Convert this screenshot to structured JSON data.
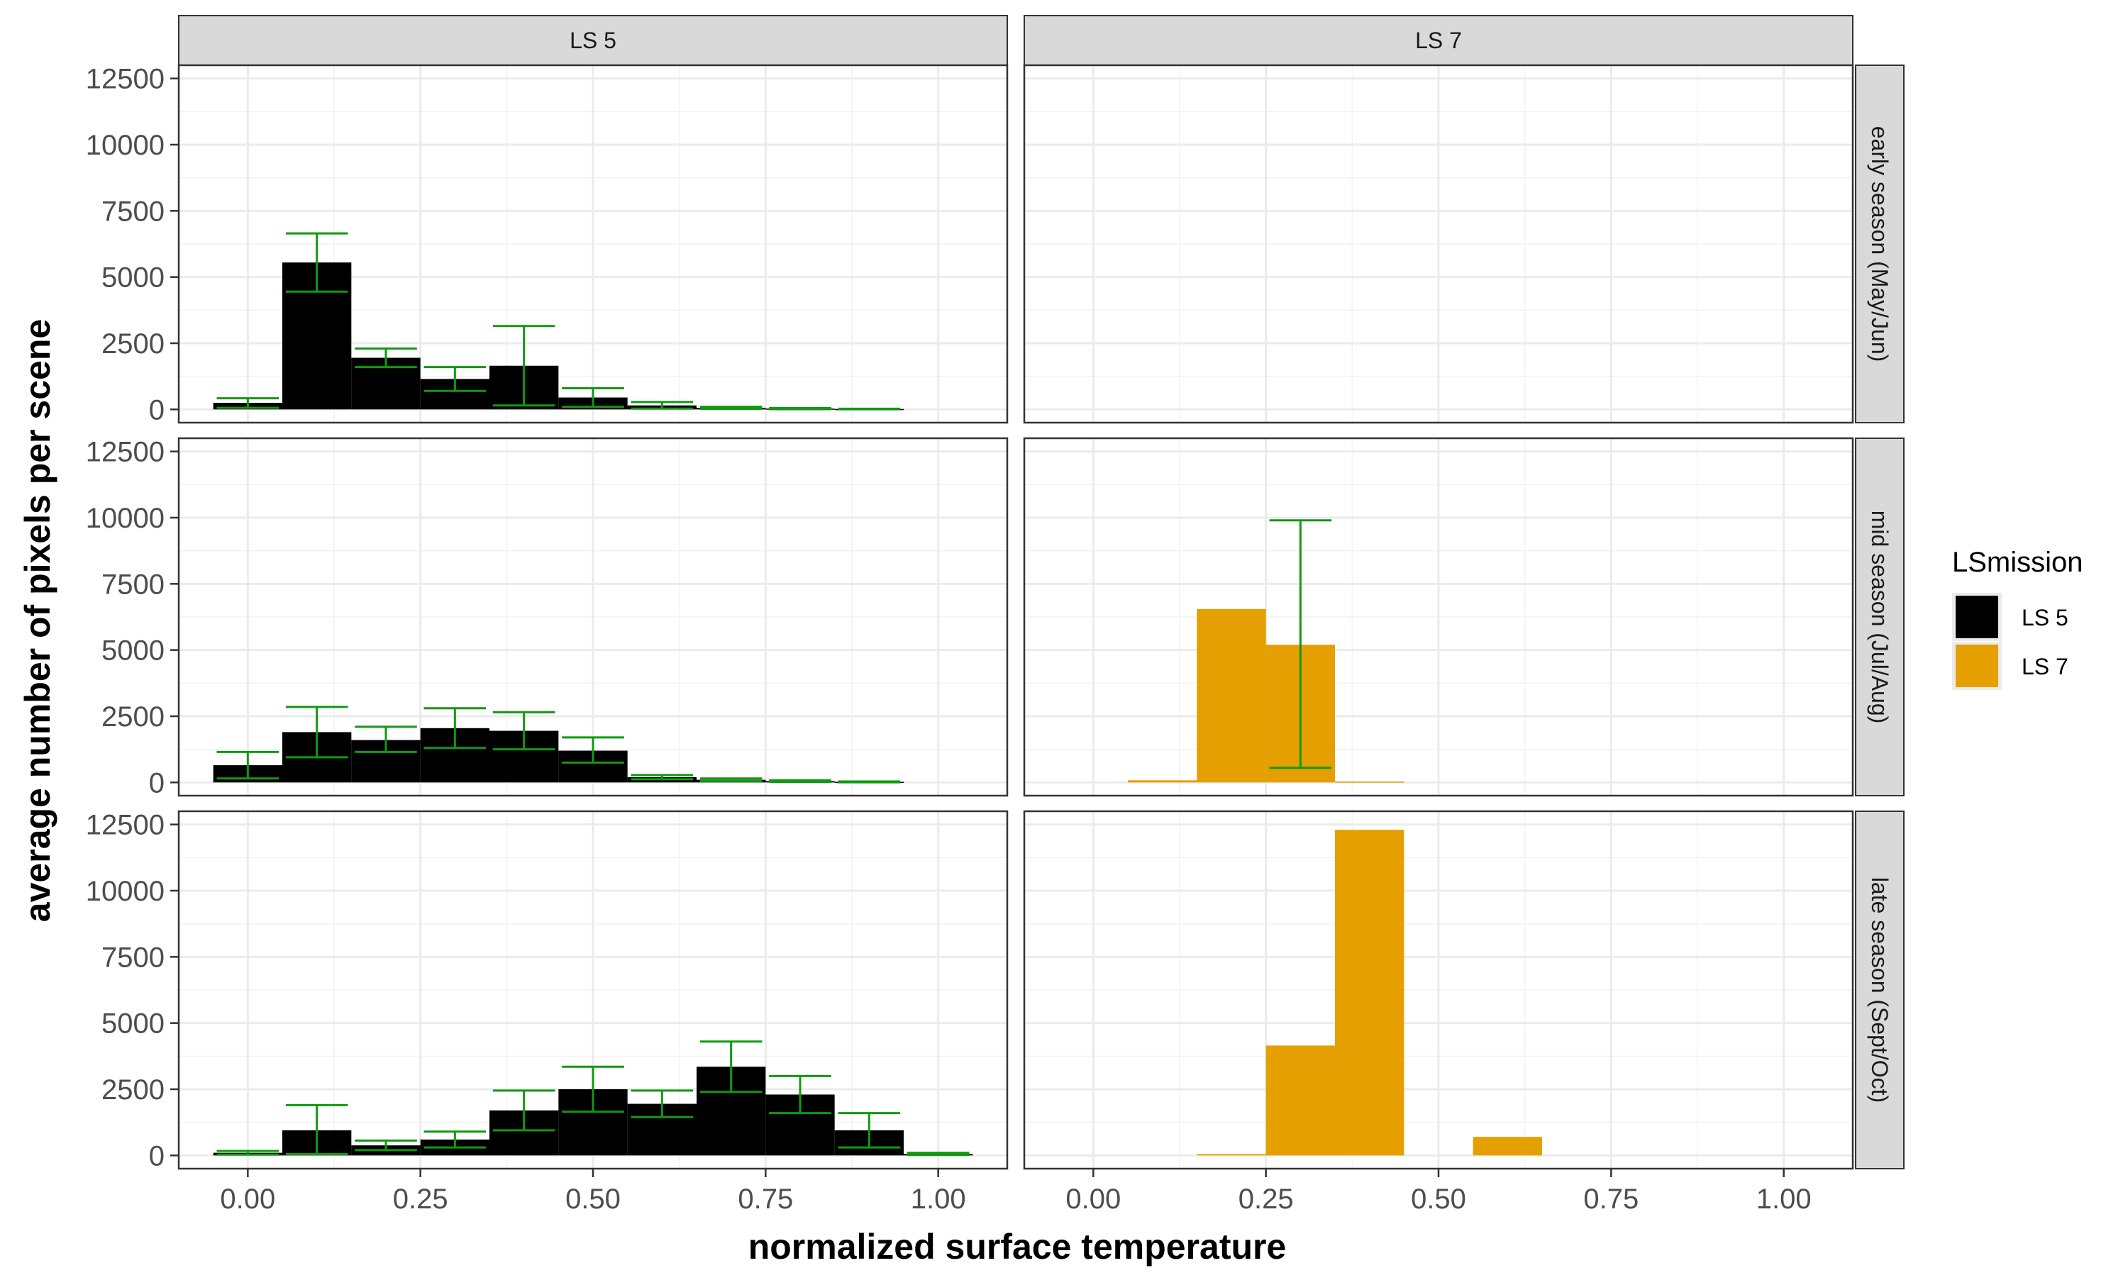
{
  "chart_data": {
    "type": "bar",
    "xlabel": "normalized surface temperature",
    "ylabel": "average number of pixels per scene",
    "xticks": [
      "0.00",
      "0.25",
      "0.50",
      "0.75",
      "1.00"
    ],
    "yticks": [
      "0",
      "2500",
      "5000",
      "7500",
      "10000",
      "12500"
    ],
    "xlim": [
      -0.1,
      1.1
    ],
    "ylim": [
      -500,
      13000
    ],
    "bin_width": 0.1,
    "grid": true,
    "columns": [
      "LS 5",
      "LS 7"
    ],
    "rows": [
      "early season (May/Jun)",
      "mid season (Jul/Aug)",
      "late season (Sept/Oct)"
    ],
    "legend": {
      "title": "LSmission",
      "position": "right",
      "items": [
        {
          "label": "LS 5",
          "color": "#000000"
        },
        {
          "label": "LS 7",
          "color": "#E69F00"
        }
      ]
    },
    "errorbar_color": "#119911",
    "panels": [
      {
        "row": "early season (May/Jun)",
        "column": "LS 5",
        "bars": [
          {
            "x": 0.0,
            "y": 250,
            "ymin": 60,
            "ymax": 420
          },
          {
            "x": 0.1,
            "y": 5550,
            "ymin": 4450,
            "ymax": 6650
          },
          {
            "x": 0.2,
            "y": 1950,
            "ymin": 1600,
            "ymax": 2300
          },
          {
            "x": 0.3,
            "y": 1150,
            "ymin": 700,
            "ymax": 1600
          },
          {
            "x": 0.4,
            "y": 1650,
            "ymin": 150,
            "ymax": 3150
          },
          {
            "x": 0.5,
            "y": 450,
            "ymin": 100,
            "ymax": 800
          },
          {
            "x": 0.6,
            "y": 150,
            "ymin": 30,
            "ymax": 280
          },
          {
            "x": 0.7,
            "y": 60,
            "ymin": 20,
            "ymax": 100
          },
          {
            "x": 0.8,
            "y": 30,
            "ymin": 10,
            "ymax": 50
          },
          {
            "x": 0.9,
            "y": 15,
            "ymin": 5,
            "ymax": 25
          }
        ]
      },
      {
        "row": "early season (May/Jun)",
        "column": "LS 7",
        "bars": []
      },
      {
        "row": "mid season (Jul/Aug)",
        "column": "LS 5",
        "bars": [
          {
            "x": 0.0,
            "y": 650,
            "ymin": 150,
            "ymax": 1150
          },
          {
            "x": 0.1,
            "y": 1900,
            "ymin": 950,
            "ymax": 2850
          },
          {
            "x": 0.2,
            "y": 1600,
            "ymin": 1150,
            "ymax": 2100
          },
          {
            "x": 0.3,
            "y": 2050,
            "ymin": 1300,
            "ymax": 2800
          },
          {
            "x": 0.4,
            "y": 1950,
            "ymin": 1250,
            "ymax": 2650
          },
          {
            "x": 0.5,
            "y": 1200,
            "ymin": 750,
            "ymax": 1700
          },
          {
            "x": 0.6,
            "y": 200,
            "ymin": 120,
            "ymax": 280
          },
          {
            "x": 0.7,
            "y": 100,
            "ymin": 50,
            "ymax": 150
          },
          {
            "x": 0.8,
            "y": 50,
            "ymin": 20,
            "ymax": 80
          },
          {
            "x": 0.9,
            "y": 20,
            "ymin": 5,
            "ymax": 35
          }
        ]
      },
      {
        "row": "mid season (Jul/Aug)",
        "column": "LS 7",
        "bars": [
          {
            "x": 0.1,
            "y": 80
          },
          {
            "x": 0.2,
            "y": 6550
          },
          {
            "x": 0.3,
            "y": 5200,
            "ymin": 550,
            "ymax": 9900
          },
          {
            "x": 0.4,
            "y": 30
          }
        ]
      },
      {
        "row": "late season (Sept/Oct)",
        "column": "LS 5",
        "bars": [
          {
            "x": 0.0,
            "y": 100,
            "ymin": 30,
            "ymax": 170
          },
          {
            "x": 0.1,
            "y": 950,
            "ymin": 50,
            "ymax": 1900
          },
          {
            "x": 0.2,
            "y": 380,
            "ymin": 200,
            "ymax": 560
          },
          {
            "x": 0.3,
            "y": 600,
            "ymin": 300,
            "ymax": 900
          },
          {
            "x": 0.4,
            "y": 1700,
            "ymin": 950,
            "ymax": 2450
          },
          {
            "x": 0.5,
            "y": 2500,
            "ymin": 1650,
            "ymax": 3350
          },
          {
            "x": 0.6,
            "y": 1950,
            "ymin": 1450,
            "ymax": 2450
          },
          {
            "x": 0.7,
            "y": 3350,
            "ymin": 2400,
            "ymax": 4300
          },
          {
            "x": 0.8,
            "y": 2300,
            "ymin": 1600,
            "ymax": 3000
          },
          {
            "x": 0.9,
            "y": 950,
            "ymin": 300,
            "ymax": 1600
          },
          {
            "x": 1.0,
            "y": 60,
            "ymin": 20,
            "ymax": 100
          }
        ]
      },
      {
        "row": "late season (Sept/Oct)",
        "column": "LS 7",
        "bars": [
          {
            "x": 0.2,
            "y": 50
          },
          {
            "x": 0.3,
            "y": 4150
          },
          {
            "x": 0.4,
            "y": 12300
          },
          {
            "x": 0.6,
            "y": 700
          }
        ]
      }
    ]
  }
}
